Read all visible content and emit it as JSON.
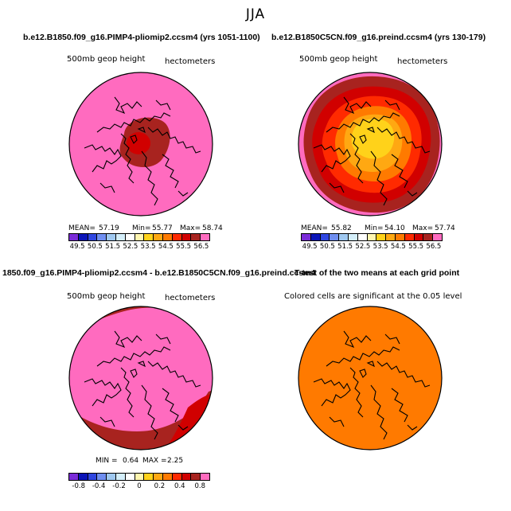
{
  "figure": {
    "title": "JJA"
  },
  "palette": [
    "#7a2bd8",
    "#0b14b8",
    "#2f46e0",
    "#6f8ef0",
    "#9fc8f0",
    "#d4eefa",
    "#ffffff",
    "#fff6b0",
    "#ffd21a",
    "#ffa812",
    "#ff7a00",
    "#ff2a00",
    "#d10000",
    "#a8231f",
    "#ff6bbf"
  ],
  "panels": [
    {
      "title": "b.e12.B1850.f09_g16.PIMP4-pliomip2.ccsm4 (yrs 1051-1100)",
      "var_label": "500mb geop height",
      "units": "hectometers",
      "stats": {
        "mean_label": "MEAN=",
        "mean": "57.19",
        "min_label": "Min=",
        "min": "55.77",
        "max_label": "Max=",
        "max": "58.74"
      },
      "colorbar_ticks": [
        "49.5",
        "50.5",
        "51.5",
        "52.5",
        "53.5",
        "54.5",
        "55.5",
        "56.5"
      ]
    },
    {
      "title": "b.e12.B1850C5CN.f09_g16.preind.ccsm4 (yrs 130-179)",
      "var_label": "500mb geop height",
      "units": "hectometers",
      "stats": {
        "mean_label": "MEAN=",
        "mean": "55.82",
        "min_label": "Min=",
        "min": "54.10",
        "max_label": "Max=",
        "max": "57.74"
      },
      "colorbar_ticks": [
        "49.5",
        "50.5",
        "51.5",
        "52.5",
        "53.5",
        "54.5",
        "55.5",
        "56.5"
      ]
    },
    {
      "title": "1850.f09_g16.PIMP4-pliomip2.ccsm4 - b.e12.B1850C5CN.f09_g16.preind.ccsm4",
      "var_label": "500mb geop height",
      "units": "hectometers",
      "stats": {
        "min_label": "MIN =",
        "min": "0.64",
        "max_label": "MAX =",
        "max": "2.25"
      },
      "colorbar_ticks": [
        "-0.8",
        "-0.4",
        "-0.2",
        "0",
        "0.2",
        "0.4",
        "0.8"
      ]
    },
    {
      "title": "T-test of the two means at each grid point",
      "var_label": "Colored cells are significant at the 0.05 level"
    }
  ]
}
